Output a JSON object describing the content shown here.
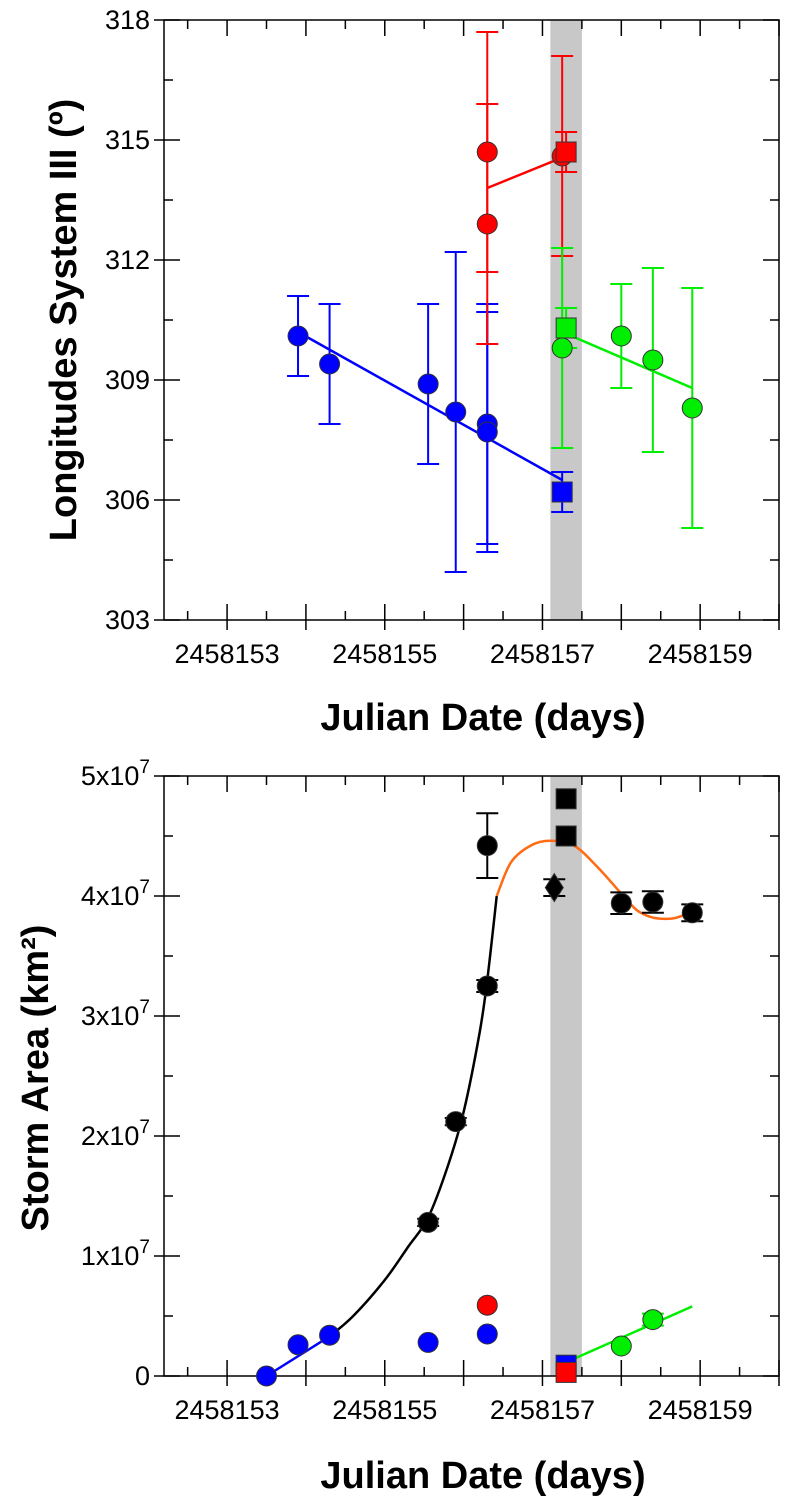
{
  "chart_data": [
    {
      "type": "scatter",
      "xlabel": "Julian Date (days)",
      "ylabel": "Longitudes System III (º)",
      "xlim": [
        2458152.2,
        2458160
      ],
      "ylim": [
        303,
        318
      ],
      "x_ticks": [
        "2458153",
        "2458155",
        "2458157",
        "2458159"
      ],
      "y_ticks": [
        "303",
        "306",
        "309",
        "312",
        "315",
        "318"
      ],
      "shaded_band": [
        2458157.1,
        2458157.5
      ],
      "series": [
        {
          "color": "#0000ff",
          "points": [
            {
              "x": 2458153.9,
              "y": 310.1,
              "err": 1.0,
              "marker": "circle"
            },
            {
              "x": 2458154.3,
              "y": 309.4,
              "err": 1.5,
              "marker": "circle"
            },
            {
              "x": 2458155.55,
              "y": 308.9,
              "err": 2.0,
              "marker": "circle"
            },
            {
              "x": 2458155.9,
              "y": 308.2,
              "err": 4.0,
              "marker": "circle"
            },
            {
              "x": 2458156.3,
              "y": 307.9,
              "err": 3.0,
              "marker": "circle"
            },
            {
              "x": 2458156.3,
              "y": 307.7,
              "err": 3.0,
              "marker": "circle"
            },
            {
              "x": 2458157.25,
              "y": 306.2,
              "err": 0.5,
              "marker": "square"
            }
          ],
          "fit": [
            [
              2458153.9,
              310.2
            ],
            [
              2458157.25,
              306.5
            ]
          ]
        },
        {
          "color": "#ff0000",
          "points": [
            {
              "x": 2458156.3,
              "y": 314.7,
              "err": 3.0,
              "marker": "circle"
            },
            {
              "x": 2458156.3,
              "y": 312.9,
              "err": 3.0,
              "marker": "circle"
            },
            {
              "x": 2458157.25,
              "y": 314.6,
              "err": 2.5,
              "marker": "circle"
            },
            {
              "x": 2458157.3,
              "y": 314.7,
              "err": 0.5,
              "marker": "square"
            }
          ],
          "fit": [
            [
              2458156.3,
              313.8
            ],
            [
              2458157.3,
              314.6
            ]
          ]
        },
        {
          "color": "#00ee00",
          "points": [
            {
              "x": 2458157.25,
              "y": 309.8,
              "err": 2.5,
              "marker": "circle"
            },
            {
              "x": 2458157.3,
              "y": 310.3,
              "err": 0.5,
              "marker": "square"
            },
            {
              "x": 2458158.0,
              "y": 310.1,
              "err": 1.3,
              "marker": "circle"
            },
            {
              "x": 2458158.4,
              "y": 309.5,
              "err": 2.3,
              "marker": "circle"
            },
            {
              "x": 2458158.9,
              "y": 308.3,
              "err": 3.0,
              "marker": "circle"
            }
          ],
          "fit": [
            [
              2458157.25,
              310.2
            ],
            [
              2458158.9,
              308.8
            ]
          ]
        }
      ]
    },
    {
      "type": "scatter",
      "xlabel": "Julian Date (days)",
      "ylabel": "Storm Area (km²)",
      "xlim": [
        2458152.2,
        2458160
      ],
      "ylim": [
        0,
        50000000
      ],
      "x_ticks": [
        "2458153",
        "2458155",
        "2458157",
        "2458159"
      ],
      "y_ticks": [
        {
          "base": "0",
          "exp": ""
        },
        {
          "base": "1x10",
          "exp": "7"
        },
        {
          "base": "2x10",
          "exp": "7"
        },
        {
          "base": "3x10",
          "exp": "7"
        },
        {
          "base": "4x10",
          "exp": "7"
        },
        {
          "base": "5x10",
          "exp": "7"
        }
      ],
      "shaded_band": [
        2458157.1,
        2458157.5
      ],
      "series": [
        {
          "color": "#000000",
          "points": [
            {
              "x": 2458155.55,
              "y": 12800000,
              "err": 300000,
              "marker": "circle"
            },
            {
              "x": 2458155.9,
              "y": 21200000,
              "err": 300000,
              "marker": "circle"
            },
            {
              "x": 2458156.3,
              "y": 32500000,
              "err": 500000,
              "marker": "circle"
            },
            {
              "x": 2458156.3,
              "y": 44200000,
              "err": 2700000,
              "marker": "circle"
            },
            {
              "x": 2458157.15,
              "y": 40700000,
              "err": 700000,
              "marker": "diamond"
            },
            {
              "x": 2458157.3,
              "y": 48100000,
              "err": 0,
              "marker": "square"
            },
            {
              "x": 2458157.3,
              "y": 45000000,
              "err": 0,
              "marker": "square"
            },
            {
              "x": 2458158.0,
              "y": 39400000,
              "err": 900000,
              "marker": "circle"
            },
            {
              "x": 2458158.4,
              "y": 39500000,
              "err": 900000,
              "marker": "circle"
            },
            {
              "x": 2458158.9,
              "y": 38600000,
              "err": 700000,
              "marker": "circle"
            }
          ]
        },
        {
          "color": "#0000ff",
          "points": [
            {
              "x": 2458153.5,
              "y": 0,
              "err": 0,
              "marker": "circle"
            },
            {
              "x": 2458153.9,
              "y": 2600000,
              "err": 0,
              "marker": "circle"
            },
            {
              "x": 2458154.3,
              "y": 3400000,
              "err": 0,
              "marker": "circle"
            },
            {
              "x": 2458155.55,
              "y": 2800000,
              "err": 0,
              "marker": "circle"
            },
            {
              "x": 2458156.3,
              "y": 3500000,
              "err": 0,
              "marker": "circle"
            },
            {
              "x": 2458157.3,
              "y": 900000,
              "err": 0,
              "marker": "square"
            }
          ],
          "fit": [
            [
              2458153.5,
              0
            ],
            [
              2458154.3,
              3300000
            ]
          ]
        },
        {
          "color": "#ff0000",
          "points": [
            {
              "x": 2458156.3,
              "y": 5900000,
              "err": 0,
              "marker": "circle"
            },
            {
              "x": 2458157.3,
              "y": 300000,
              "err": 0,
              "marker": "square"
            }
          ]
        },
        {
          "color": "#00ee00",
          "points": [
            {
              "x": 2458158.0,
              "y": 2500000,
              "err": 0,
              "marker": "circle"
            },
            {
              "x": 2458158.4,
              "y": 4700000,
              "err": 500000,
              "marker": "circle"
            }
          ],
          "fit": [
            [
              2458157.25,
              1000000
            ],
            [
              2458158.9,
              5800000
            ]
          ]
        }
      ],
      "curves": [
        {
          "color": "#000000",
          "points": [
            [
              2458154.3,
              3300000
            ],
            [
              2458154.6,
              5000000
            ],
            [
              2458155.0,
              8000000
            ],
            [
              2458155.3,
              10800000
            ],
            [
              2458155.55,
              13200000
            ],
            [
              2458155.8,
              17500000
            ],
            [
              2458156.0,
              22000000
            ],
            [
              2458156.2,
              28500000
            ],
            [
              2458156.3,
              33000000
            ],
            [
              2458156.42,
              40000000
            ]
          ]
        },
        {
          "color": "#ff6a13",
          "points": [
            [
              2458156.42,
              40000000
            ],
            [
              2458156.6,
              42800000
            ],
            [
              2458156.85,
              44200000
            ],
            [
              2458157.1,
              44600000
            ],
            [
              2458157.4,
              44200000
            ],
            [
              2458157.7,
              42400000
            ],
            [
              2458158.0,
              40200000
            ],
            [
              2458158.2,
              38800000
            ],
            [
              2458158.4,
              38200000
            ],
            [
              2458158.6,
              38100000
            ],
            [
              2458158.75,
              38300000
            ],
            [
              2458158.9,
              38800000
            ]
          ]
        }
      ]
    }
  ]
}
